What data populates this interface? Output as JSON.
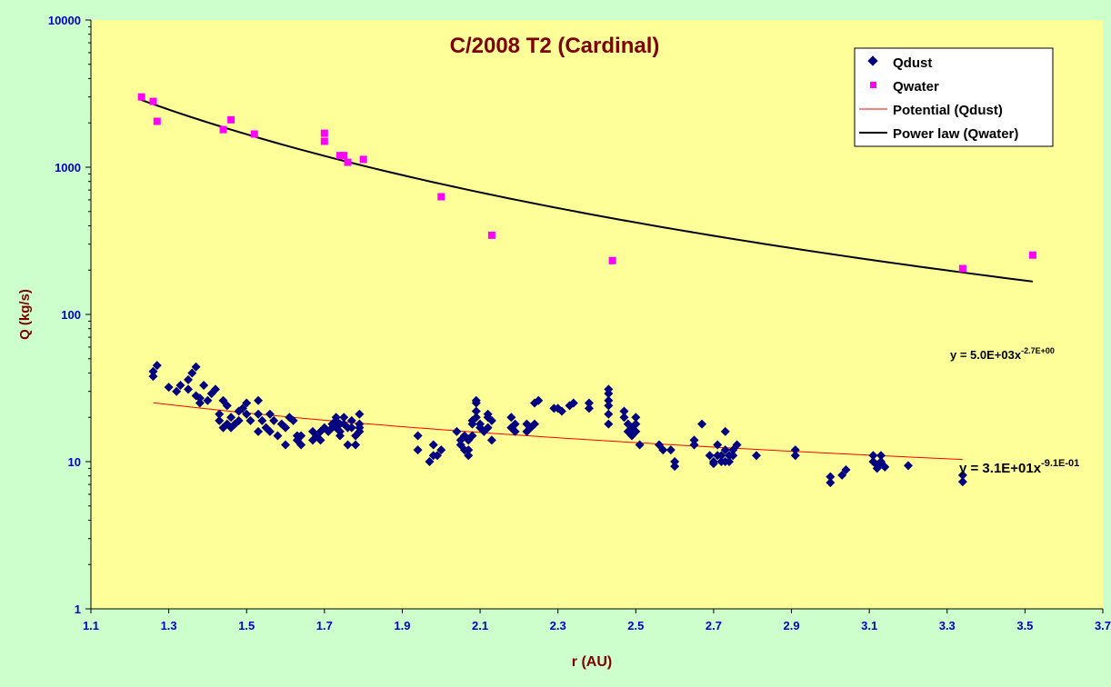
{
  "chart_data": {
    "type": "scatter",
    "title": "C/2008 T2 (Cardinal)",
    "xlabel": "r (AU)",
    "ylabel": "Q (kg/s)",
    "xlim": [
      1.1,
      3.7
    ],
    "ylim": [
      1,
      10000
    ],
    "yscale": "log",
    "x_ticks": [
      "1.1",
      "1.3",
      "1.5",
      "1.7",
      "1.9",
      "2.1",
      "2.3",
      "2.5",
      "2.7",
      "2.9",
      "3.1",
      "3.3",
      "3.5",
      "3.7"
    ],
    "y_ticks": [
      "1",
      "10",
      "100",
      "1000",
      "10000"
    ],
    "grid": false,
    "legend_position": "top-right",
    "legend": [
      {
        "label": "Qdust",
        "marker": "diamond",
        "color": "#000080"
      },
      {
        "label": "Qwater",
        "marker": "square",
        "color": "#ff00ff"
      },
      {
        "label": "Potential (Qdust)",
        "marker": "line",
        "color": "#ff0000"
      },
      {
        "label": "Power law (Qwater)",
        "marker": "line",
        "color": "#000000"
      }
    ],
    "colors": {
      "plot_background": "#ffff99",
      "outer_background": "#ccffcc",
      "title": "#800000",
      "axis_label": "#800000",
      "tick_label": "#0000cc",
      "qdust": "#000080",
      "qwater": "#ff00ff",
      "fit_dust": "#ff0000",
      "fit_water": "#000000"
    },
    "series": [
      {
        "name": "Qwater",
        "points": [
          [
            1.23,
            3000
          ],
          [
            1.26,
            2800
          ],
          [
            1.27,
            2050
          ],
          [
            1.44,
            1800
          ],
          [
            1.46,
            2100
          ],
          [
            1.52,
            1680
          ],
          [
            1.7,
            1700
          ],
          [
            1.7,
            1500
          ],
          [
            1.74,
            1200
          ],
          [
            1.75,
            1200
          ],
          [
            1.76,
            1080
          ],
          [
            1.8,
            1130
          ],
          [
            2.0,
            630
          ],
          [
            2.13,
            345
          ],
          [
            2.44,
            232
          ],
          [
            3.34,
            205
          ],
          [
            3.52,
            253
          ]
        ]
      },
      {
        "name": "Qdust",
        "points": [
          [
            1.26,
            38
          ],
          [
            1.26,
            41
          ],
          [
            1.27,
            45
          ],
          [
            1.3,
            32
          ],
          [
            1.32,
            30
          ],
          [
            1.33,
            33
          ],
          [
            1.35,
            36
          ],
          [
            1.35,
            31
          ],
          [
            1.36,
            40
          ],
          [
            1.37,
            44
          ],
          [
            1.37,
            28
          ],
          [
            1.38,
            25
          ],
          [
            1.38,
            27
          ],
          [
            1.39,
            33
          ],
          [
            1.4,
            26
          ],
          [
            1.41,
            29
          ],
          [
            1.42,
            31
          ],
          [
            1.43,
            19
          ],
          [
            1.43,
            21
          ],
          [
            1.44,
            17
          ],
          [
            1.44,
            26
          ],
          [
            1.45,
            18
          ],
          [
            1.45,
            24
          ],
          [
            1.46,
            17
          ],
          [
            1.46,
            20
          ],
          [
            1.47,
            18
          ],
          [
            1.48,
            22
          ],
          [
            1.48,
            19
          ],
          [
            1.49,
            23
          ],
          [
            1.5,
            21
          ],
          [
            1.5,
            25
          ],
          [
            1.51,
            19
          ],
          [
            1.53,
            26
          ],
          [
            1.53,
            21
          ],
          [
            1.53,
            16
          ],
          [
            1.54,
            19
          ],
          [
            1.55,
            17
          ],
          [
            1.56,
            21
          ],
          [
            1.56,
            16
          ],
          [
            1.57,
            19
          ],
          [
            1.58,
            15
          ],
          [
            1.59,
            18
          ],
          [
            1.6,
            17
          ],
          [
            1.6,
            13
          ],
          [
            1.61,
            20
          ],
          [
            1.62,
            19
          ],
          [
            1.63,
            15
          ],
          [
            1.63,
            14
          ],
          [
            1.64,
            13
          ],
          [
            1.64,
            15
          ],
          [
            1.67,
            16
          ],
          [
            1.67,
            14
          ],
          [
            1.68,
            15
          ],
          [
            1.69,
            14
          ],
          [
            1.69,
            16
          ],
          [
            1.7,
            17
          ],
          [
            1.71,
            16
          ],
          [
            1.72,
            18
          ],
          [
            1.72,
            17
          ],
          [
            1.73,
            19
          ],
          [
            1.73,
            17
          ],
          [
            1.73,
            20
          ],
          [
            1.74,
            18
          ],
          [
            1.74,
            16
          ],
          [
            1.74,
            15
          ],
          [
            1.75,
            20
          ],
          [
            1.75,
            18
          ],
          [
            1.76,
            17
          ],
          [
            1.76,
            13
          ],
          [
            1.77,
            17
          ],
          [
            1.77,
            19
          ],
          [
            1.78,
            13
          ],
          [
            1.78,
            15
          ],
          [
            1.79,
            18
          ],
          [
            1.79,
            21
          ],
          [
            1.79,
            17
          ],
          [
            1.79,
            16
          ],
          [
            1.94,
            15
          ],
          [
            1.94,
            12
          ],
          [
            1.97,
            10
          ],
          [
            1.98,
            13
          ],
          [
            1.98,
            11
          ],
          [
            1.99,
            11
          ],
          [
            2.0,
            12
          ],
          [
            2.04,
            16
          ],
          [
            2.05,
            14
          ],
          [
            2.05,
            13
          ],
          [
            2.06,
            15
          ],
          [
            2.06,
            12
          ],
          [
            2.07,
            14
          ],
          [
            2.07,
            11
          ],
          [
            2.07,
            12
          ],
          [
            2.08,
            18
          ],
          [
            2.08,
            19
          ],
          [
            2.08,
            15
          ],
          [
            2.09,
            20
          ],
          [
            2.09,
            22
          ],
          [
            2.09,
            25
          ],
          [
            2.09,
            26
          ],
          [
            2.1,
            17
          ],
          [
            2.1,
            18
          ],
          [
            2.11,
            16
          ],
          [
            2.12,
            17
          ],
          [
            2.12,
            20
          ],
          [
            2.12,
            21
          ],
          [
            2.13,
            19
          ],
          [
            2.13,
            14
          ],
          [
            2.18,
            20
          ],
          [
            2.18,
            17
          ],
          [
            2.19,
            18
          ],
          [
            2.19,
            16
          ],
          [
            2.22,
            16
          ],
          [
            2.22,
            18
          ],
          [
            2.23,
            17
          ],
          [
            2.24,
            18
          ],
          [
            2.24,
            25
          ],
          [
            2.25,
            26
          ],
          [
            2.29,
            23
          ],
          [
            2.3,
            23
          ],
          [
            2.31,
            22
          ],
          [
            2.33,
            24
          ],
          [
            2.34,
            25
          ],
          [
            2.38,
            23
          ],
          [
            2.38,
            25
          ],
          [
            2.43,
            31
          ],
          [
            2.43,
            29
          ],
          [
            2.43,
            26
          ],
          [
            2.43,
            24
          ],
          [
            2.43,
            21
          ],
          [
            2.43,
            18
          ],
          [
            2.47,
            22
          ],
          [
            2.47,
            20
          ],
          [
            2.48,
            18
          ],
          [
            2.48,
            16
          ],
          [
            2.49,
            17
          ],
          [
            2.49,
            15
          ],
          [
            2.5,
            18
          ],
          [
            2.5,
            16
          ],
          [
            2.5,
            20
          ],
          [
            2.51,
            13
          ],
          [
            2.56,
            13
          ],
          [
            2.57,
            12
          ],
          [
            2.59,
            12
          ],
          [
            2.6,
            10
          ],
          [
            2.6,
            9.3
          ],
          [
            2.65,
            14
          ],
          [
            2.65,
            13
          ],
          [
            2.67,
            18
          ],
          [
            2.69,
            11
          ],
          [
            2.7,
            10
          ],
          [
            2.7,
            9.7
          ],
          [
            2.71,
            13
          ],
          [
            2.71,
            11
          ],
          [
            2.72,
            10
          ],
          [
            2.72,
            11
          ],
          [
            2.73,
            12
          ],
          [
            2.73,
            10
          ],
          [
            2.73,
            16
          ],
          [
            2.74,
            11
          ],
          [
            2.74,
            10
          ],
          [
            2.75,
            12
          ],
          [
            2.75,
            11
          ],
          [
            2.76,
            13
          ],
          [
            2.81,
            11
          ],
          [
            2.91,
            12
          ],
          [
            2.91,
            11
          ],
          [
            3.0,
            7.9
          ],
          [
            3.0,
            7.2
          ],
          [
            3.03,
            8.1
          ],
          [
            3.04,
            8.8
          ],
          [
            3.11,
            11
          ],
          [
            3.11,
            10
          ],
          [
            3.12,
            9.5
          ],
          [
            3.12,
            9.0
          ],
          [
            3.13,
            10
          ],
          [
            3.13,
            11
          ],
          [
            3.13,
            9.8
          ],
          [
            3.14,
            9.2
          ],
          [
            3.2,
            9.4
          ],
          [
            3.34,
            8.1
          ],
          [
            3.34,
            7.3
          ]
        ]
      },
      {
        "name": "Power law (Qwater)",
        "fit": {
          "a": 5000.0,
          "b": -2.7
        },
        "x_range": [
          1.23,
          3.52
        ]
      },
      {
        "name": "Potential (Qdust)",
        "fit": {
          "a": 31.0,
          "b": -0.91
        },
        "x_range": [
          1.26,
          3.34
        ]
      }
    ],
    "annotations": [
      {
        "id": "water",
        "base": "y = 5.0E+03x",
        "exp": "-2.7E+00"
      },
      {
        "id": "dust",
        "base": "y = 3.1E+01x",
        "exp": "-9.1E-01"
      }
    ]
  }
}
